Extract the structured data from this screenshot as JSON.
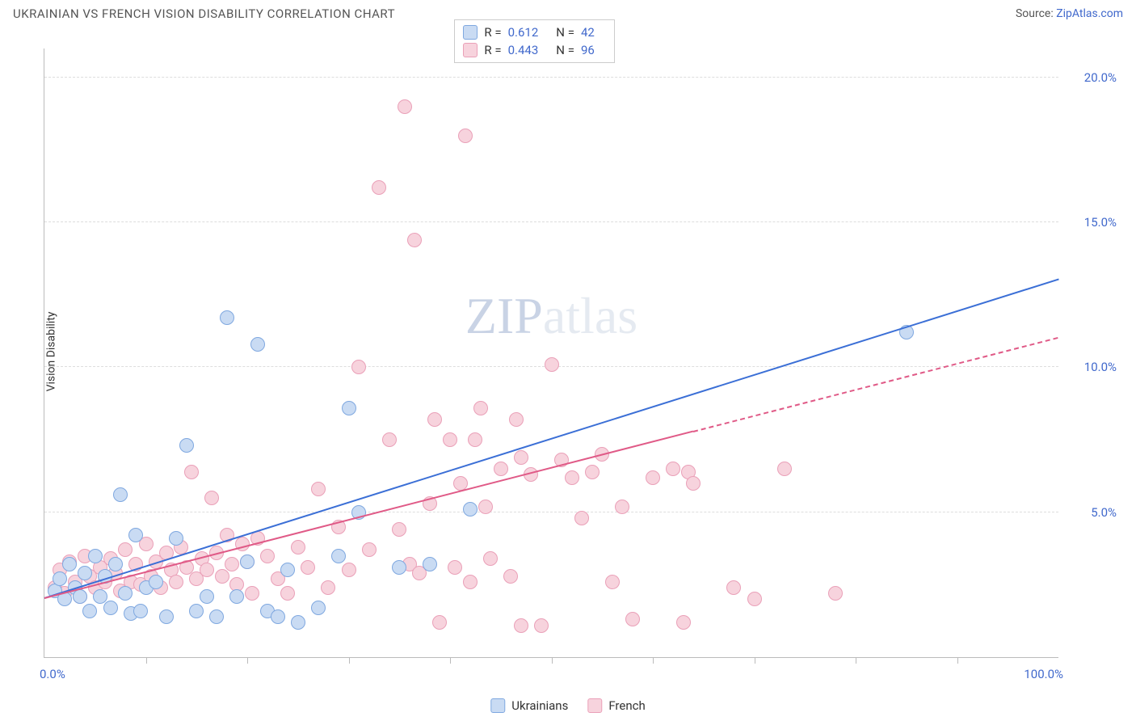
{
  "header": {
    "title": "UKRAINIAN VS FRENCH VISION DISABILITY CORRELATION CHART",
    "source_prefix": "Source: ",
    "source_link": "ZipAtlas.com"
  },
  "watermark": {
    "strong": "ZIP",
    "light": "atlas"
  },
  "chart": {
    "type": "scatter",
    "ylabel": "Vision Disability",
    "background_color": "#ffffff",
    "grid_color": "#dddddd",
    "axis_color": "#bbbbbb",
    "label_color": "#4169cc",
    "label_fontsize": 15,
    "xlim": [
      0,
      100
    ],
    "ylim": [
      0,
      21
    ],
    "x_tick_step": 10,
    "x_min_label": "0.0%",
    "x_max_label": "100.0%",
    "y_grid": [
      {
        "value": 5,
        "label": "5.0%"
      },
      {
        "value": 10,
        "label": "10.0%"
      },
      {
        "value": 15,
        "label": "15.0%"
      },
      {
        "value": 20,
        "label": "20.0%"
      }
    ],
    "marker_radius": 9,
    "marker_stroke_width": 1,
    "series": [
      {
        "name": "Ukrainians",
        "fill_color": "#c9dbf3",
        "stroke_color": "#7fa8e0",
        "line_color": "#3b6fd6",
        "stats": {
          "R": "0.612",
          "N": "42"
        },
        "trend": {
          "x1": 0,
          "y1": 2.0,
          "x2": 100,
          "y2": 13.0,
          "solid_until_x": 100
        },
        "points": [
          [
            1,
            2.3
          ],
          [
            1.5,
            2.7
          ],
          [
            2,
            2.0
          ],
          [
            2.5,
            3.2
          ],
          [
            3,
            2.4
          ],
          [
            3.5,
            2.1
          ],
          [
            4,
            2.9
          ],
          [
            4.5,
            1.6
          ],
          [
            5,
            3.5
          ],
          [
            5.5,
            2.1
          ],
          [
            6,
            2.8
          ],
          [
            6.5,
            1.7
          ],
          [
            7,
            3.2
          ],
          [
            7.5,
            5.6
          ],
          [
            8,
            2.2
          ],
          [
            8.5,
            1.5
          ],
          [
            9,
            4.2
          ],
          [
            9.5,
            1.6
          ],
          [
            10,
            2.4
          ],
          [
            11,
            2.6
          ],
          [
            12,
            1.4
          ],
          [
            13,
            4.1
          ],
          [
            14,
            7.3
          ],
          [
            15,
            1.6
          ],
          [
            16,
            2.1
          ],
          [
            17,
            1.4
          ],
          [
            18,
            11.7
          ],
          [
            19,
            2.1
          ],
          [
            20,
            3.3
          ],
          [
            21,
            10.8
          ],
          [
            22,
            1.6
          ],
          [
            23,
            1.4
          ],
          [
            24,
            3.0
          ],
          [
            25,
            1.2
          ],
          [
            27,
            1.7
          ],
          [
            29,
            3.5
          ],
          [
            30,
            8.6
          ],
          [
            31,
            5.0
          ],
          [
            35,
            3.1
          ],
          [
            38,
            3.2
          ],
          [
            42,
            5.1
          ],
          [
            85,
            11.2
          ]
        ]
      },
      {
        "name": "French",
        "fill_color": "#f7d3dd",
        "stroke_color": "#eaa0b8",
        "line_color": "#e05a87",
        "stats": {
          "R": "0.443",
          "N": "96"
        },
        "trend": {
          "x1": 0,
          "y1": 2.0,
          "x2": 100,
          "y2": 11.0,
          "solid_until_x": 64
        },
        "points": [
          [
            1,
            2.4
          ],
          [
            1.5,
            3.0
          ],
          [
            2,
            2.2
          ],
          [
            2.5,
            3.3
          ],
          [
            3,
            2.6
          ],
          [
            3.5,
            2.1
          ],
          [
            4,
            3.5
          ],
          [
            4.5,
            2.8
          ],
          [
            5,
            2.4
          ],
          [
            5.5,
            3.1
          ],
          [
            6,
            2.6
          ],
          [
            6.5,
            3.4
          ],
          [
            7,
            2.9
          ],
          [
            7.5,
            2.3
          ],
          [
            8,
            3.7
          ],
          [
            8.5,
            2.6
          ],
          [
            9,
            3.2
          ],
          [
            9.5,
            2.5
          ],
          [
            10,
            3.9
          ],
          [
            10.5,
            2.8
          ],
          [
            11,
            3.3
          ],
          [
            11.5,
            2.4
          ],
          [
            12,
            3.6
          ],
          [
            12.5,
            3.0
          ],
          [
            13,
            2.6
          ],
          [
            13.5,
            3.8
          ],
          [
            14,
            3.1
          ],
          [
            14.5,
            6.4
          ],
          [
            15,
            2.7
          ],
          [
            15.5,
            3.4
          ],
          [
            16,
            3.0
          ],
          [
            16.5,
            5.5
          ],
          [
            17,
            3.6
          ],
          [
            17.5,
            2.8
          ],
          [
            18,
            4.2
          ],
          [
            18.5,
            3.2
          ],
          [
            19,
            2.5
          ],
          [
            19.5,
            3.9
          ],
          [
            20,
            3.3
          ],
          [
            20.5,
            2.2
          ],
          [
            21,
            4.1
          ],
          [
            22,
            3.5
          ],
          [
            23,
            2.7
          ],
          [
            24,
            2.2
          ],
          [
            25,
            3.8
          ],
          [
            26,
            3.1
          ],
          [
            27,
            5.8
          ],
          [
            28,
            2.4
          ],
          [
            29,
            4.5
          ],
          [
            30,
            3.0
          ],
          [
            31,
            10.0
          ],
          [
            32,
            3.7
          ],
          [
            33,
            16.2
          ],
          [
            34,
            7.5
          ],
          [
            35,
            4.4
          ],
          [
            35.5,
            19.0
          ],
          [
            36,
            3.2
          ],
          [
            36.5,
            14.4
          ],
          [
            37,
            2.9
          ],
          [
            38,
            5.3
          ],
          [
            38.5,
            8.2
          ],
          [
            39,
            1.2
          ],
          [
            40,
            7.5
          ],
          [
            40.5,
            3.1
          ],
          [
            41,
            6.0
          ],
          [
            41.5,
            18.0
          ],
          [
            42,
            2.6
          ],
          [
            42.5,
            7.5
          ],
          [
            43,
            8.6
          ],
          [
            43.5,
            5.2
          ],
          [
            44,
            3.4
          ],
          [
            45,
            6.5
          ],
          [
            46,
            2.8
          ],
          [
            46.5,
            8.2
          ],
          [
            47,
            6.9
          ],
          [
            48,
            6.3
          ],
          [
            49,
            1.1
          ],
          [
            50,
            10.1
          ],
          [
            51,
            6.8
          ],
          [
            52,
            6.2
          ],
          [
            53,
            4.8
          ],
          [
            54,
            6.4
          ],
          [
            55,
            7.0
          ],
          [
            56,
            2.6
          ],
          [
            57,
            5.2
          ],
          [
            58,
            1.3
          ],
          [
            60,
            6.2
          ],
          [
            62,
            6.5
          ],
          [
            63,
            1.2
          ],
          [
            63.5,
            6.4
          ],
          [
            64,
            6.0
          ],
          [
            68,
            2.4
          ],
          [
            70,
            2.0
          ],
          [
            73,
            6.5
          ],
          [
            78,
            2.2
          ],
          [
            47,
            1.1
          ]
        ]
      }
    ],
    "legend": {
      "items": [
        {
          "label": "Ukrainians",
          "fill": "#c9dbf3",
          "stroke": "#7fa8e0"
        },
        {
          "label": "French",
          "fill": "#f7d3dd",
          "stroke": "#eaa0b8"
        }
      ]
    }
  }
}
